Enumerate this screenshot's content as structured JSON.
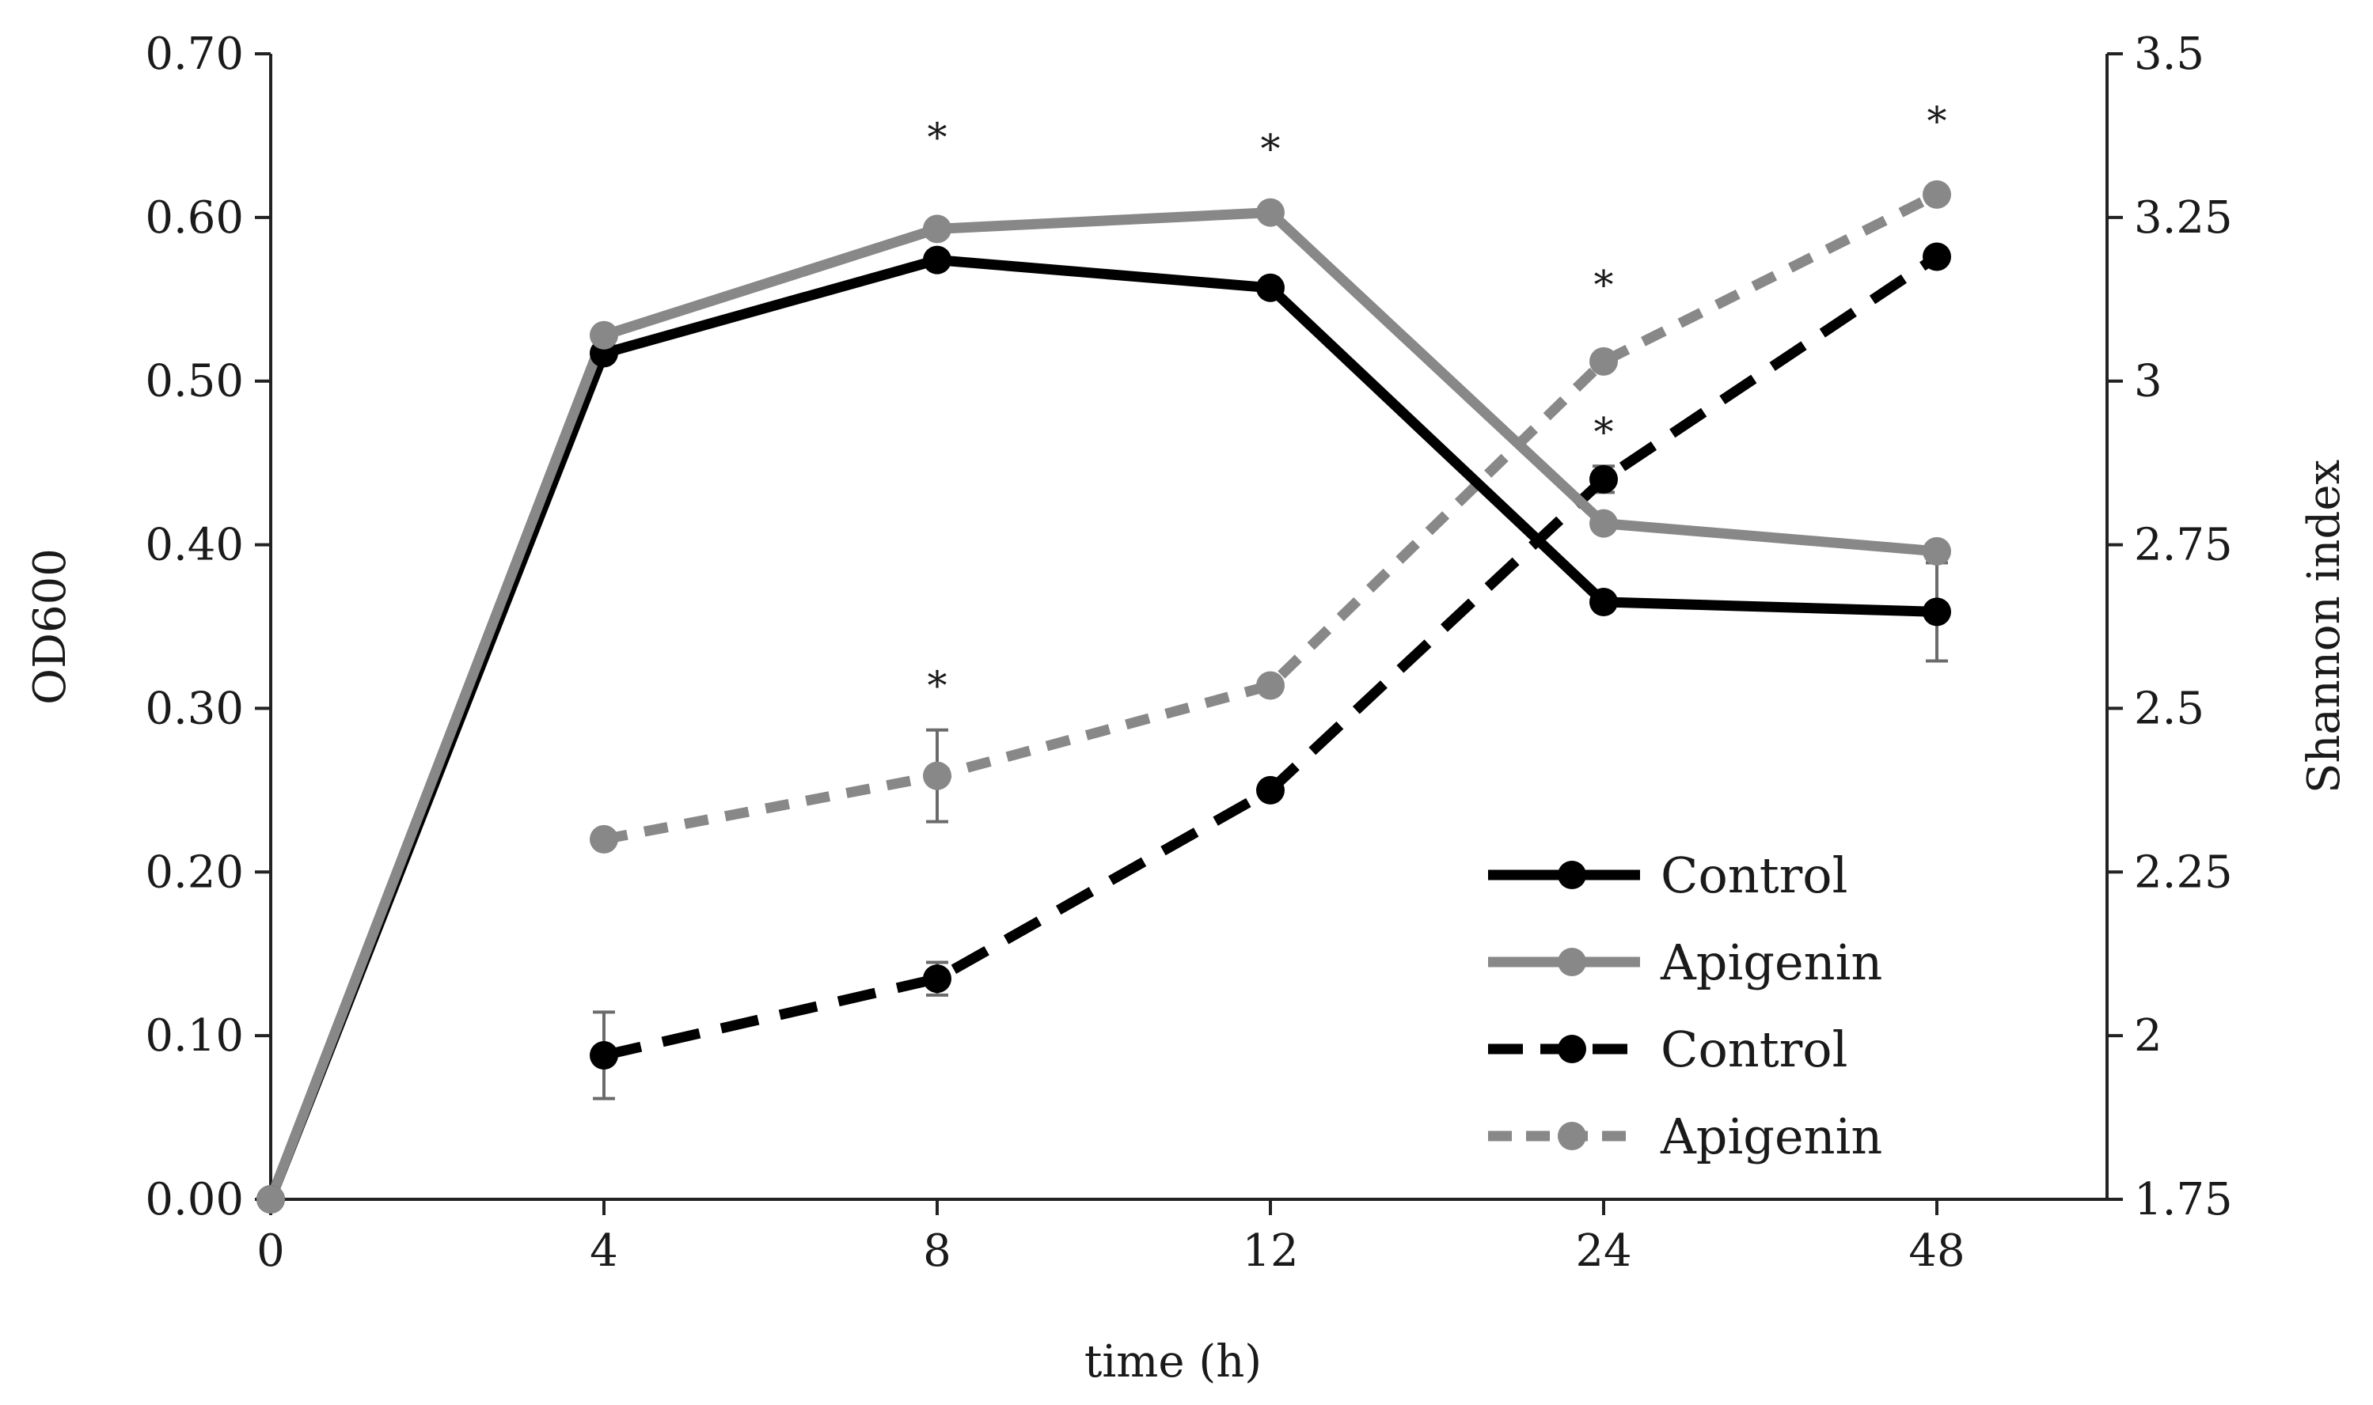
{
  "chart_data": {
    "type": "line",
    "xlabel": "time (h)",
    "ylabel_left": "OD600",
    "ylabel_right": "Shannon index",
    "x_categories": [
      "0",
      "4",
      "8",
      "12",
      "24",
      "48"
    ],
    "y_left": {
      "lim": [
        0,
        0.7
      ],
      "ticks": [
        0,
        0.1,
        0.2,
        0.3,
        0.4,
        0.5,
        0.6,
        0.7
      ],
      "tick_labels": [
        "0.00",
        "0.10",
        "0.20",
        "0.30",
        "0.40",
        "0.50",
        "0.60",
        "0.70"
      ]
    },
    "y_right": {
      "lim": [
        1.75,
        3.5
      ],
      "ticks": [
        1.75,
        2,
        2.25,
        2.5,
        2.75,
        3,
        3.25,
        3.5
      ],
      "tick_labels": [
        "1.75",
        "2",
        "2.25",
        "2.5",
        "2.75",
        "3",
        "3.25",
        "3.5"
      ]
    },
    "series": [
      {
        "name": "Control",
        "axis": "left",
        "color": "#000000",
        "dash": "solid",
        "values": [
          0.0,
          0.517,
          0.574,
          0.557,
          0.365,
          0.359
        ],
        "errors": [
          0,
          0,
          0,
          0,
          0,
          0.03
        ]
      },
      {
        "name": "Apigenin",
        "axis": "left",
        "color": "#888888",
        "dash": "solid",
        "values": [
          0.0,
          0.528,
          0.593,
          0.603,
          0.413,
          0.396
        ],
        "errors": [
          0,
          0,
          0,
          0,
          0,
          0
        ]
      },
      {
        "name": "Control",
        "axis": "right",
        "color": "#000000",
        "dash": "long",
        "x_start": 1,
        "values": [
          null,
          1.97,
          2.087,
          2.375,
          2.85,
          3.19
        ],
        "errors": [
          0,
          0.066,
          0.025,
          0,
          0.02,
          0
        ]
      },
      {
        "name": "Apigenin",
        "axis": "right",
        "color": "#888888",
        "dash": "short",
        "x_start": 1,
        "values": [
          null,
          2.3,
          2.397,
          2.535,
          3.03,
          3.285
        ],
        "errors": [
          0,
          0,
          0.07,
          0,
          0,
          0
        ]
      }
    ],
    "annotations": [
      {
        "text": "*",
        "x_index": 2,
        "axis": "left",
        "y": 0.655
      },
      {
        "text": "*",
        "x_index": 3,
        "axis": "left",
        "y": 0.648
      },
      {
        "text": "*",
        "x_index": 4,
        "axis": "left",
        "y": 0.565
      },
      {
        "text": "*",
        "x_index": 4,
        "axis": "left",
        "y": 0.475
      },
      {
        "text": "*",
        "x_index": 5,
        "axis": "left",
        "y": 0.665
      },
      {
        "text": "*",
        "x_index": 2,
        "axis": "left",
        "y": 0.32
      }
    ],
    "legend": {
      "placement": "lower-right",
      "entries": [
        "Control",
        "Apigenin",
        "Control",
        "Apigenin"
      ]
    }
  }
}
